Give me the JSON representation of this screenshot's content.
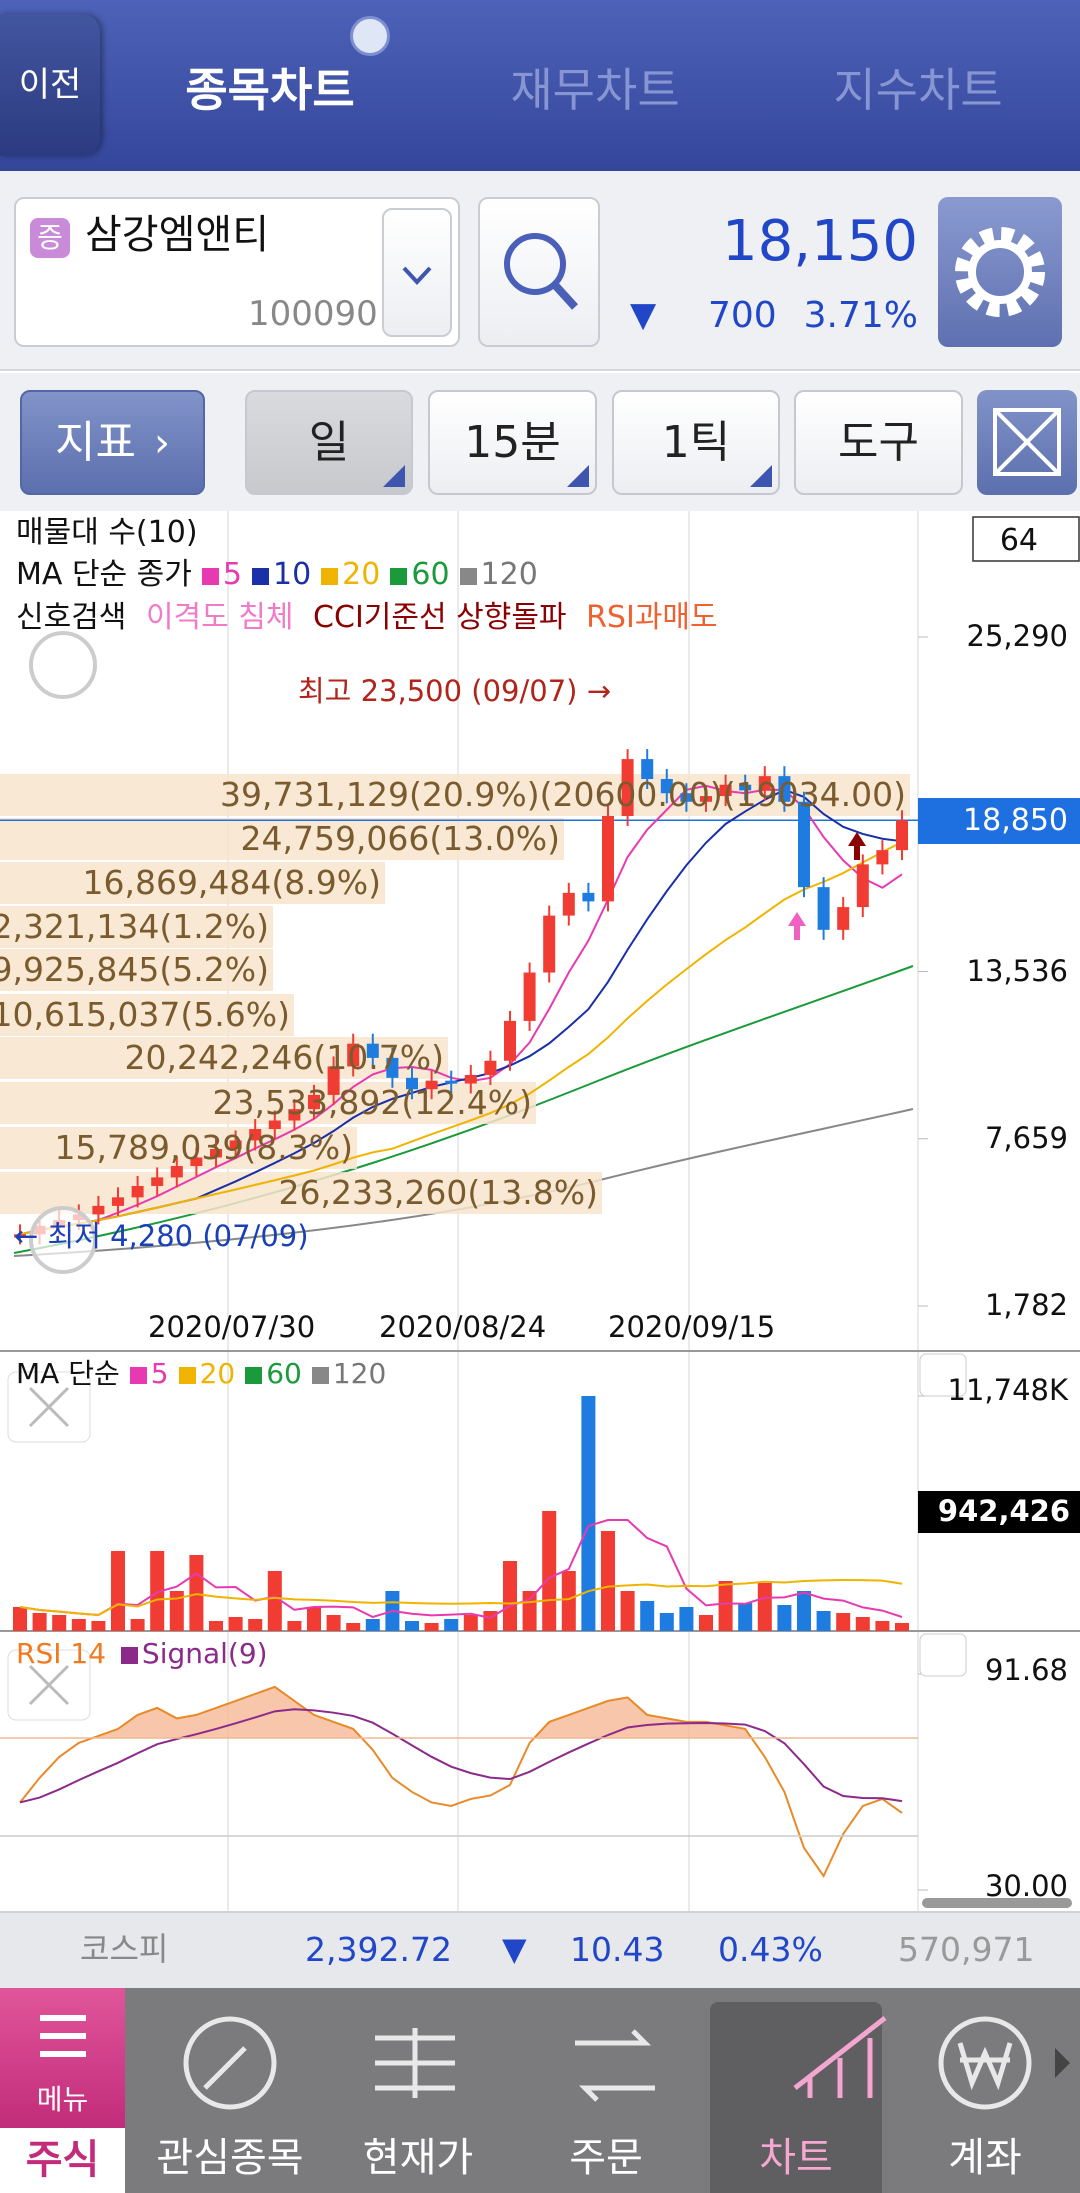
{
  "header": {
    "back": "이전",
    "tabs": [
      "종목차트",
      "재무차트",
      "지수차트"
    ]
  },
  "stock": {
    "badge": "증",
    "name": "삼강엠앤티",
    "code": "100090",
    "price": "18,150",
    "change_symbol": "▼",
    "change": "700",
    "change_pct": "3.71%"
  },
  "toolbar": {
    "indicator": "지표",
    "buttons": [
      "일",
      "15분",
      "1틱",
      "도구"
    ]
  },
  "price_chart": {
    "type": "candlestick",
    "title": "매물대 수(10)",
    "count_box": "64",
    "ma_label": "MA 단순 종가",
    "ma_periods": [
      5,
      10,
      20,
      60,
      120
    ],
    "ma_colors": [
      "#e83ab0",
      "#1a2fa8",
      "#f0b400",
      "#1a9a3a",
      "#888888"
    ],
    "signal_label": "신호검색",
    "signals": [
      "이격도 침체",
      "CCI기준선 상향돌파",
      "RSI과매도"
    ],
    "high_note": "최고 23,500 (09/07) →",
    "low_note": "← 최저 4,280 (07/09)",
    "dates": [
      "2020/07/30",
      "2020/08/24",
      "2020/09/15"
    ],
    "closes": [
      4300,
      4600,
      4800,
      5000,
      5300,
      5600,
      6000,
      6300,
      6700,
      7000,
      7300,
      7600,
      8000,
      8300,
      8700,
      9200,
      10200,
      11000,
      10500,
      9800,
      9400,
      9700,
      9600,
      9900,
      10400,
      11800,
      13500,
      15500,
      16300,
      16000,
      19000,
      21000,
      20300,
      19800,
      19500,
      19700,
      20100,
      19900,
      20400,
      19500,
      16500,
      15000,
      15800,
      17300,
      17800,
      18850
    ],
    "up_color": "#f03c32",
    "down_color": "#1e7be0",
    "ylim": [
      1782,
      25290
    ],
    "yticks": [
      {
        "value": 25290,
        "label": "25,290"
      },
      {
        "value": 13536,
        "label": "13,536"
      },
      {
        "value": 7659,
        "label": "7,659"
      },
      {
        "value": 1782,
        "label": "1,782"
      }
    ],
    "current": {
      "value": 18850,
      "label": "18,850"
    },
    "profile": [
      "39,731,129(20.9%)(20600.00)(19034.00)",
      "24,759,066(13.0%)",
      "16,869,484(8.9%)",
      "2,321,134(1.2%)",
      "9,925,845(5.2%)",
      "10,615,037(5.6%)",
      "20,242,246(10.7%)",
      "23,533,892(12.4%)",
      "15,789,039(8.3%)",
      "26,233,260(13.8%)"
    ]
  },
  "volume_panel": {
    "ma_label": "MA 단순",
    "ma_periods": [
      5,
      20,
      60,
      120
    ],
    "values": [
      1200,
      900,
      800,
      600,
      500,
      4000,
      600,
      4000,
      2000,
      3800,
      500,
      700,
      600,
      3000,
      500,
      1200,
      800,
      400,
      600,
      2000,
      500,
      400,
      600,
      800,
      1000,
      3500,
      2000,
      6000,
      3000,
      11748,
      5000,
      2000,
      1500,
      900,
      1200,
      800,
      2500,
      1400,
      2400,
      1300,
      2000,
      1000,
      900,
      700,
      500,
      400
    ],
    "ylim": [
      0,
      11748
    ],
    "yticks": [
      {
        "value": 11748,
        "label": "11,748K"
      }
    ],
    "current_label": "942,426"
  },
  "rsi_panel": {
    "labels": [
      "RSI 14",
      "Signal(9)"
    ],
    "values": [
      55,
      62,
      68,
      72,
      74,
      76,
      80,
      82,
      79,
      80,
      82,
      84,
      86,
      88,
      84,
      80,
      78,
      76,
      70,
      62,
      58,
      55,
      54,
      56,
      57,
      60,
      72,
      78,
      80,
      82,
      84,
      85,
      80,
      79,
      78,
      78,
      77,
      76,
      68,
      58,
      42,
      34,
      46,
      54,
      56,
      52
    ],
    "ylim": [
      30,
      91.68
    ],
    "yticks": [
      91.68,
      {
        "value": 30,
        "label": "30.00"
      }
    ]
  },
  "index_bar": {
    "name": "코스피",
    "value": "2,392.72",
    "change_symbol": "▼",
    "change": "10.43",
    "change_pct": "0.43%",
    "volume": "570,971"
  },
  "nav": {
    "menu": "메뉴",
    "items": [
      "주식",
      "관심종목",
      "현재가",
      "주문",
      "차트",
      "계좌"
    ]
  }
}
